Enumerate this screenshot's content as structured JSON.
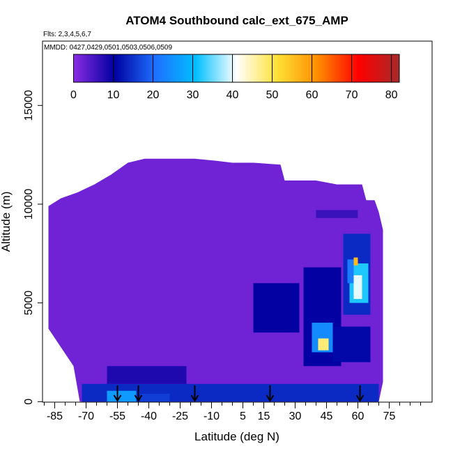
{
  "chart_data": {
    "type": "heatmap",
    "title": "ATOM4 Southbound calc_ext_675_AMP",
    "flights_note": "Flts: 2,3,4,5,6,7",
    "dates_note": "MMDD: 0427,0429,0501,0503,0506,0509",
    "xlabel": "Latitude (deg N)",
    "ylabel": "Altitude (m)",
    "xlim": [
      -90,
      90
    ],
    "ylim": [
      0,
      17500
    ],
    "x_ticks": [
      -85,
      -70,
      -55,
      -40,
      -25,
      -10,
      5,
      15,
      30,
      45,
      60,
      75
    ],
    "y_ticks": [
      0,
      5000,
      10000,
      15000
    ],
    "colorbar": {
      "range": [
        0,
        82
      ],
      "ticks": [
        0,
        10,
        20,
        30,
        40,
        50,
        60,
        70,
        80
      ],
      "colors": [
        "#8a2be2",
        "#0000a0",
        "#1e6fff",
        "#00bfff",
        "#ffffff",
        "#ffe135",
        "#ff8c00",
        "#ff0000",
        "#a52a2a"
      ]
    },
    "background_value": 2,
    "coverage_top": [
      [
        -88,
        9900
      ],
      [
        -82,
        10300
      ],
      [
        -74,
        10600
      ],
      [
        -66,
        11000
      ],
      [
        -58,
        11500
      ],
      [
        -50,
        12100
      ],
      [
        -42,
        12300
      ],
      [
        -30,
        12300
      ],
      [
        -18,
        12300
      ],
      [
        -8,
        12200
      ],
      [
        0,
        12100
      ],
      [
        10,
        12100
      ],
      [
        23,
        12000
      ],
      [
        25,
        11200
      ],
      [
        40,
        11200
      ],
      [
        50,
        11000
      ],
      [
        56,
        11000
      ],
      [
        62,
        11000
      ],
      [
        64,
        10200
      ],
      [
        68,
        10200
      ],
      [
        70,
        9600
      ],
      [
        72,
        8700
      ]
    ],
    "coverage_bottom": [
      [
        -88,
        3700
      ],
      [
        -76,
        1800
      ],
      [
        -73,
        0
      ],
      [
        70,
        0
      ],
      [
        72,
        1000
      ]
    ],
    "enhanced_regions": [
      {
        "lat": [
          -72,
          70
        ],
        "alt": [
          0,
          900
        ],
        "value": 14
      },
      {
        "lat": [
          -60,
          -46
        ],
        "alt": [
          0,
          550
        ],
        "value": 26
      },
      {
        "lat": [
          -44,
          -30
        ],
        "alt": [
          0,
          400
        ],
        "value": 16
      },
      {
        "lat": [
          -60,
          -22
        ],
        "alt": [
          900,
          1800
        ],
        "value": 8
      },
      {
        "lat": [
          10,
          32
        ],
        "alt": [
          3500,
          6000
        ],
        "value": 10
      },
      {
        "lat": [
          34,
          52
        ],
        "alt": [
          1800,
          6800
        ],
        "value": 10
      },
      {
        "lat": [
          38,
          48
        ],
        "alt": [
          2500,
          4000
        ],
        "value": 24
      },
      {
        "lat": [
          41,
          46
        ],
        "alt": [
          2600,
          3200
        ],
        "value": 48
      },
      {
        "lat": [
          48,
          66
        ],
        "alt": [
          2000,
          3800
        ],
        "value": 11
      },
      {
        "lat": [
          53,
          66
        ],
        "alt": [
          4400,
          8500
        ],
        "value": 14
      },
      {
        "lat": [
          56,
          65
        ],
        "alt": [
          5000,
          7000
        ],
        "value": 32
      },
      {
        "lat": [
          58,
          62
        ],
        "alt": [
          5200,
          6400
        ],
        "value": 40
      },
      {
        "lat": [
          58,
          60
        ],
        "alt": [
          6900,
          7300
        ],
        "value": 56
      },
      {
        "lat": [
          55,
          58
        ],
        "alt": [
          6000,
          7200
        ],
        "value": 22
      },
      {
        "lat": [
          40,
          60
        ],
        "alt": [
          9300,
          9700
        ],
        "value": 6
      }
    ],
    "profile_arrows_lat": [
      -55,
      -45,
      -18,
      18,
      61
    ]
  }
}
